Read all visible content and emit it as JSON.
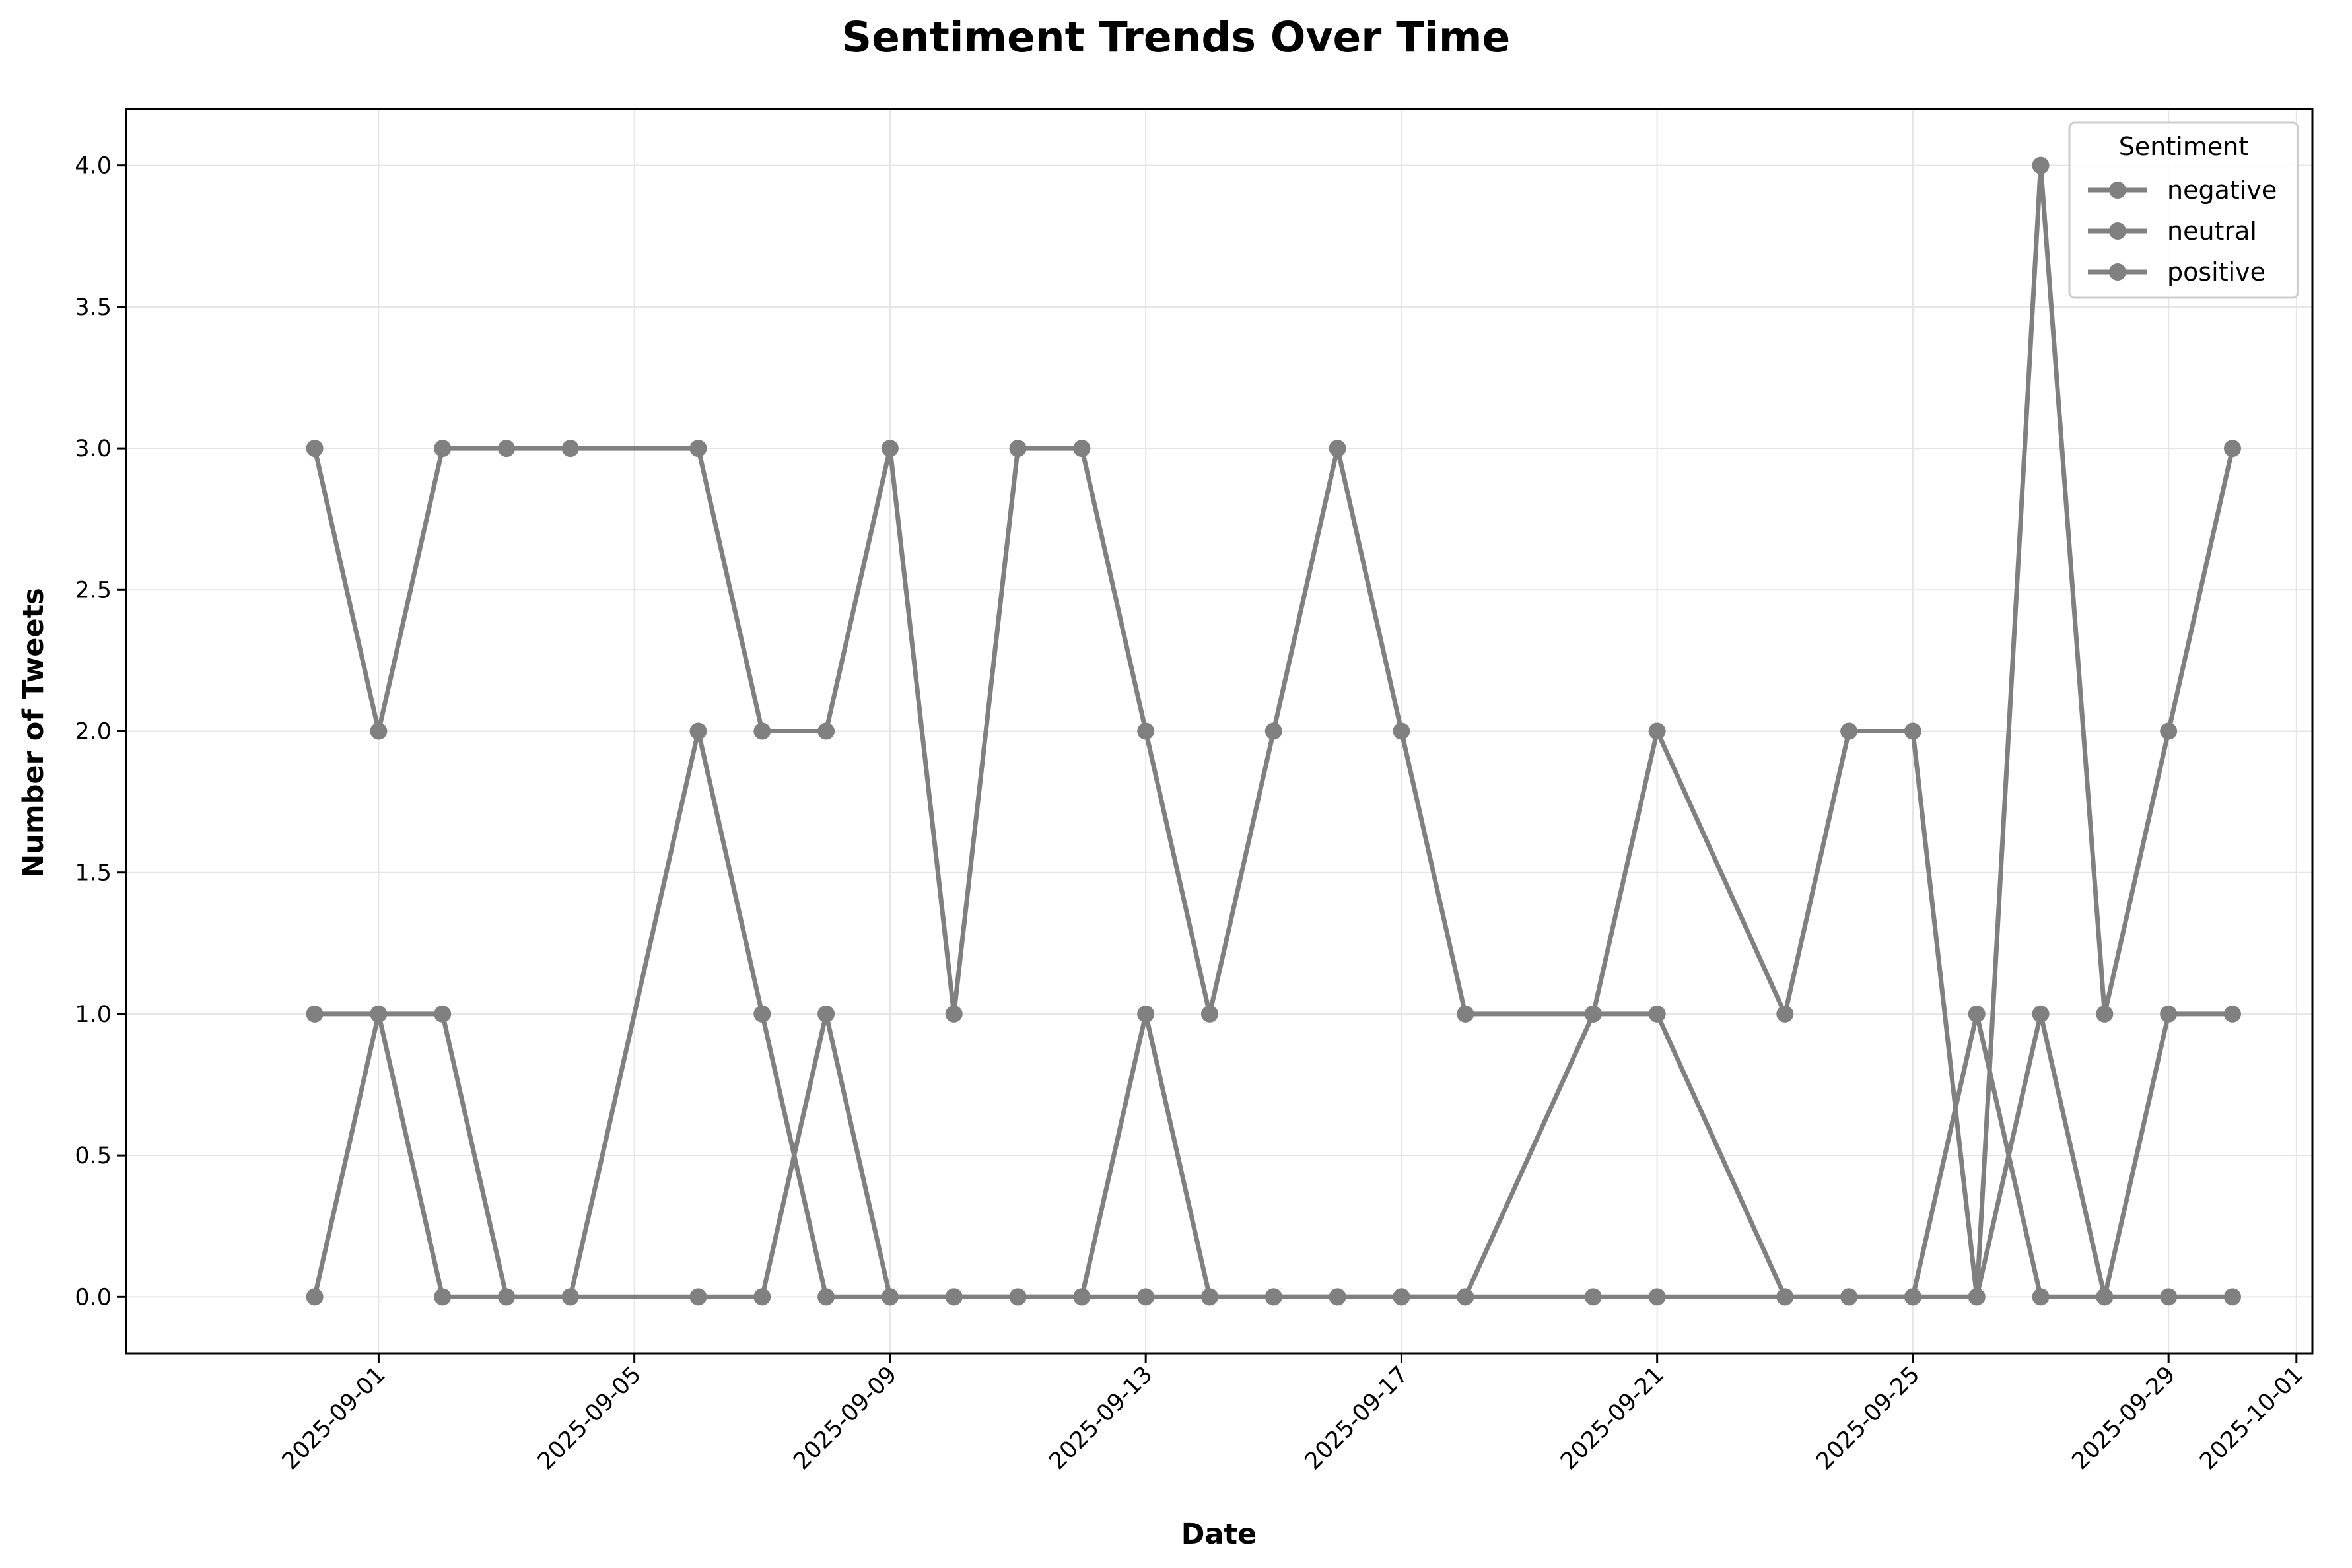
{
  "chart_data": {
    "type": "line",
    "title": "Sentiment Trends Over Time",
    "xlabel": "Date",
    "ylabel": "Number of Tweets",
    "x_tick_labels": [
      "2025-09-01",
      "2025-09-05",
      "2025-09-09",
      "2025-09-13",
      "2025-09-17",
      "2025-09-21",
      "2025-09-25",
      "2025-09-29",
      "2025-10-01"
    ],
    "y_tick_labels": [
      "0.0",
      "0.5",
      "1.0",
      "1.5",
      "2.0",
      "2.5",
      "3.0",
      "3.5",
      "4.0"
    ],
    "ylim": [
      -0.2,
      4.2
    ],
    "xlim": [
      "2025-08-29",
      "2025-10-01"
    ],
    "grid": true,
    "legend": {
      "title": "Sentiment",
      "position": "top-right"
    },
    "line_color": "#808080",
    "series": [
      {
        "name": "negative",
        "points": [
          [
            "2025-08-31",
            3
          ],
          [
            "2025-09-01",
            2
          ],
          [
            "2025-09-02",
            3
          ],
          [
            "2025-09-03",
            3
          ],
          [
            "2025-09-04",
            3
          ],
          [
            "2025-09-06",
            3
          ],
          [
            "2025-09-07",
            2
          ],
          [
            "2025-09-08",
            2
          ],
          [
            "2025-09-09",
            3
          ],
          [
            "2025-09-10",
            1
          ],
          [
            "2025-09-11",
            3
          ],
          [
            "2025-09-12",
            3
          ],
          [
            "2025-09-13",
            2
          ],
          [
            "2025-09-14",
            1
          ],
          [
            "2025-09-15",
            2
          ],
          [
            "2025-09-16",
            3
          ],
          [
            "2025-09-17",
            2
          ],
          [
            "2025-09-18",
            1
          ],
          [
            "2025-09-20",
            1
          ],
          [
            "2025-09-21",
            2
          ],
          [
            "2025-09-23",
            1
          ],
          [
            "2025-09-24",
            2
          ],
          [
            "2025-09-25",
            2
          ],
          [
            "2025-09-26",
            0
          ],
          [
            "2025-09-27",
            4
          ],
          [
            "2025-09-28",
            1
          ],
          [
            "2025-09-29",
            2
          ],
          [
            "2025-09-30",
            3
          ]
        ]
      },
      {
        "name": "neutral",
        "points": [
          [
            "2025-08-31",
            1
          ],
          [
            "2025-09-01",
            1
          ],
          [
            "2025-09-02",
            1
          ],
          [
            "2025-09-03",
            0
          ],
          [
            "2025-09-04",
            0
          ],
          [
            "2025-09-06",
            2
          ],
          [
            "2025-09-07",
            1
          ],
          [
            "2025-09-08",
            0
          ],
          [
            "2025-09-09",
            0
          ],
          [
            "2025-09-10",
            0
          ],
          [
            "2025-09-11",
            0
          ],
          [
            "2025-09-12",
            0
          ],
          [
            "2025-09-13",
            1
          ],
          [
            "2025-09-14",
            0
          ],
          [
            "2025-09-15",
            0
          ],
          [
            "2025-09-16",
            0
          ],
          [
            "2025-09-17",
            0
          ],
          [
            "2025-09-18",
            0
          ],
          [
            "2025-09-20",
            1
          ],
          [
            "2025-09-21",
            1
          ],
          [
            "2025-09-23",
            0
          ],
          [
            "2025-09-24",
            0
          ],
          [
            "2025-09-25",
            0
          ],
          [
            "2025-09-26",
            1
          ],
          [
            "2025-09-27",
            0
          ],
          [
            "2025-09-28",
            0
          ],
          [
            "2025-09-29",
            1
          ],
          [
            "2025-09-30",
            1
          ]
        ]
      },
      {
        "name": "positive",
        "points": [
          [
            "2025-08-31",
            0
          ],
          [
            "2025-09-01",
            1
          ],
          [
            "2025-09-02",
            0
          ],
          [
            "2025-09-03",
            0
          ],
          [
            "2025-09-04",
            0
          ],
          [
            "2025-09-06",
            0
          ],
          [
            "2025-09-07",
            0
          ],
          [
            "2025-09-08",
            1
          ],
          [
            "2025-09-09",
            0
          ],
          [
            "2025-09-10",
            0
          ],
          [
            "2025-09-11",
            0
          ],
          [
            "2025-09-12",
            0
          ],
          [
            "2025-09-13",
            0
          ],
          [
            "2025-09-14",
            0
          ],
          [
            "2025-09-15",
            0
          ],
          [
            "2025-09-16",
            0
          ],
          [
            "2025-09-17",
            0
          ],
          [
            "2025-09-18",
            0
          ],
          [
            "2025-09-20",
            0
          ],
          [
            "2025-09-21",
            0
          ],
          [
            "2025-09-23",
            0
          ],
          [
            "2025-09-24",
            0
          ],
          [
            "2025-09-25",
            0
          ],
          [
            "2025-09-26",
            0
          ],
          [
            "2025-09-27",
            1
          ],
          [
            "2025-09-28",
            0
          ],
          [
            "2025-09-29",
            0
          ],
          [
            "2025-09-30",
            0
          ]
        ]
      }
    ]
  }
}
